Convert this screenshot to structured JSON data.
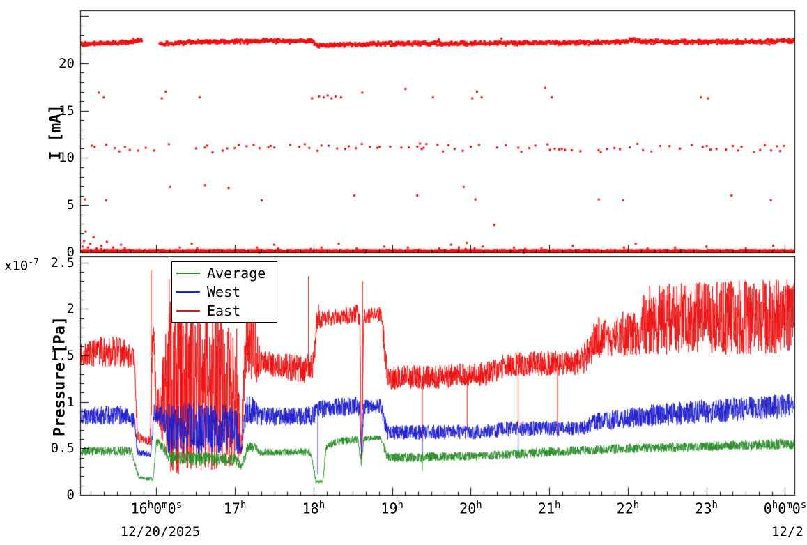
{
  "top_panel": {
    "ylabel": "I [mA]",
    "yticks": {
      "values": [
        0,
        5,
        10,
        15,
        20
      ],
      "labels": [
        "0",
        "5",
        "10",
        "15",
        "20"
      ]
    }
  },
  "bottom_panel": {
    "ylabel": "Pressure [Pa]",
    "exponent": "x10^{-7}",
    "yticks": {
      "values": [
        0,
        0.5,
        1,
        1.5,
        2,
        2.5
      ],
      "labels": [
        "0",
        "0.5",
        "1",
        "1.5",
        "2",
        "2.5"
      ]
    },
    "legend": {
      "entries": [
        {
          "label": "Average",
          "color": "#2a8f2a"
        },
        {
          "label": "West",
          "color": "#2020d0"
        },
        {
          "label": "East",
          "color": "#ee1111"
        }
      ]
    }
  },
  "xaxis": {
    "ticks": [
      {
        "t": 16,
        "label": "16^{h}0^{m}0^{s}"
      },
      {
        "t": 17,
        "label": "17^{h}"
      },
      {
        "t": 18,
        "label": "18^{h}"
      },
      {
        "t": 19,
        "label": "19^{h}"
      },
      {
        "t": 20,
        "label": "20^{h}"
      },
      {
        "t": 21,
        "label": "21^{h}"
      },
      {
        "t": 22,
        "label": "22^{h}"
      },
      {
        "t": 23,
        "label": "23^{h}"
      },
      {
        "t": 24,
        "label": "0^{h}0^{m}0^{s}"
      }
    ],
    "date_left": "12/20/2025",
    "date_right": "12/2"
  },
  "chart_data": [
    {
      "type": "scatter",
      "panel": "top",
      "ylabel": "I [mA]",
      "ylim": [
        0,
        25.6
      ],
      "x_unit": "hours",
      "xlim": [
        15.03,
        24.12
      ],
      "marker_color": "#ee1111",
      "bands": [
        {
          "name": "main-current-band",
          "kind": "dense-trace",
          "jitter": 0.18,
          "spacing_h": 0.0055,
          "gaps": [
            [
              15.82,
              16.04
            ]
          ],
          "mean_points": [
            [
              15.04,
              22.05
            ],
            [
              15.3,
              22.1
            ],
            [
              15.55,
              22.18
            ],
            [
              15.7,
              22.35
            ],
            [
              15.82,
              22.5
            ],
            [
              16.04,
              22.05
            ],
            [
              16.3,
              22.2
            ],
            [
              16.6,
              22.28
            ],
            [
              17.0,
              22.3
            ],
            [
              17.4,
              22.4
            ],
            [
              17.7,
              22.35
            ],
            [
              17.98,
              22.45
            ],
            [
              18.03,
              21.85
            ],
            [
              18.3,
              21.95
            ],
            [
              18.8,
              22.05
            ],
            [
              19.5,
              22.1
            ],
            [
              20.5,
              22.15
            ],
            [
              21.5,
              22.2
            ],
            [
              21.95,
              22.3
            ],
            [
              22.05,
              22.55
            ],
            [
              22.15,
              22.3
            ],
            [
              23.0,
              22.25
            ],
            [
              23.5,
              22.3
            ],
            [
              24.11,
              22.4
            ]
          ]
        },
        {
          "name": "eleven-mA-band",
          "kind": "random-scatter",
          "t_range": [
            15.05,
            24.08
          ],
          "y_center": 11.05,
          "y_jitter": 0.33,
          "keep_prob": 0.8
        },
        {
          "name": "zero-line",
          "kind": "dense-trace",
          "jitter": 0.07,
          "spacing_h": 0.004,
          "gaps": [],
          "mean_points": [
            [
              15.03,
              0.17
            ],
            [
              24.12,
              0.17
            ]
          ]
        }
      ],
      "points_16mA": [
        [
          15.27,
          16.9
        ],
        [
          15.33,
          16.4
        ],
        [
          16.07,
          16.3
        ],
        [
          16.12,
          17.0
        ],
        [
          16.55,
          16.4
        ],
        [
          17.98,
          16.3
        ],
        [
          18.07,
          16.5
        ],
        [
          18.13,
          16.4
        ],
        [
          18.18,
          16.6
        ],
        [
          18.23,
          16.3
        ],
        [
          18.28,
          16.5
        ],
        [
          18.35,
          16.4
        ],
        [
          18.62,
          16.9
        ],
        [
          19.17,
          17.3
        ],
        [
          19.52,
          16.4
        ],
        [
          20.02,
          16.3
        ],
        [
          20.08,
          17.0
        ],
        [
          20.14,
          16.4
        ],
        [
          20.95,
          17.4
        ],
        [
          21.03,
          16.4
        ],
        [
          22.93,
          16.4
        ],
        [
          23.02,
          16.3
        ]
      ],
      "points_6mA": [
        [
          15.09,
          5.6
        ],
        [
          15.36,
          5.5
        ],
        [
          16.17,
          6.9
        ],
        [
          16.62,
          7.1
        ],
        [
          16.92,
          6.8
        ],
        [
          17.34,
          5.5
        ],
        [
          18.52,
          6.0
        ],
        [
          19.32,
          6.0
        ],
        [
          19.91,
          6.9
        ],
        [
          20.06,
          5.6
        ],
        [
          21.63,
          5.6
        ],
        [
          21.94,
          5.5
        ],
        [
          23.32,
          6.0
        ],
        [
          23.82,
          5.5
        ]
      ],
      "points_low": [
        [
          15.06,
          0.6
        ],
        [
          15.08,
          1.2
        ],
        [
          15.1,
          2.2
        ],
        [
          15.13,
          0.5
        ],
        [
          15.16,
          0.9
        ],
        [
          15.2,
          1.6
        ],
        [
          15.24,
          0.4
        ],
        [
          15.3,
          0.7
        ],
        [
          15.37,
          1.1
        ],
        [
          15.45,
          0.5
        ],
        [
          15.55,
          0.8
        ],
        [
          15.6,
          0.4
        ],
        [
          16.3,
          0.5
        ],
        [
          16.45,
          0.9
        ],
        [
          16.52,
          0.4
        ],
        [
          17.28,
          0.5
        ],
        [
          17.5,
          0.8
        ],
        [
          17.55,
          0.4
        ],
        [
          18.1,
          0.5
        ],
        [
          18.32,
          0.9
        ],
        [
          18.55,
          0.4
        ],
        [
          18.9,
          0.6
        ],
        [
          19.2,
          0.5
        ],
        [
          19.6,
          0.4
        ],
        [
          19.75,
          0.8
        ],
        [
          19.85,
          0.5
        ],
        [
          19.95,
          1.0
        ],
        [
          20.05,
          0.4
        ],
        [
          20.15,
          0.6
        ],
        [
          20.3,
          2.9
        ],
        [
          20.55,
          0.5
        ],
        [
          20.9,
          0.4
        ],
        [
          21.3,
          0.7
        ],
        [
          21.95,
          0.5
        ],
        [
          22.1,
          0.9
        ],
        [
          22.25,
          0.4
        ],
        [
          22.6,
          0.5
        ],
        [
          23.0,
          0.6
        ],
        [
          23.5,
          0.4
        ],
        [
          23.85,
          0.7
        ]
      ]
    },
    {
      "type": "line",
      "panel": "bottom",
      "ylabel": "Pressure [Pa]",
      "y_scale_label": "x10^{-7}",
      "y_unit": "Pa (x1e-7)",
      "ylim": [
        0,
        2.565
      ],
      "xlim": [
        15.03,
        24.12
      ],
      "legend_position": "top-left",
      "series": [
        {
          "name": "East",
          "color": "#ee1111",
          "draw_order": 1,
          "envelope": [
            [
              15.04,
              1.5,
              0.13
            ],
            [
              15.4,
              1.55,
              0.18
            ],
            [
              15.6,
              1.52,
              0.15
            ],
            [
              15.72,
              1.45,
              0.12
            ],
            [
              15.76,
              0.62,
              0.06
            ],
            [
              15.92,
              0.58,
              0.05
            ],
            [
              15.96,
              1.8,
              0.5
            ],
            [
              16.0,
              0.95,
              0.2
            ],
            [
              16.08,
              1.0,
              0.45
            ],
            [
              16.14,
              1.15,
              0.95
            ],
            [
              17.02,
              1.15,
              0.85
            ],
            [
              17.08,
              0.52,
              0.1
            ],
            [
              17.14,
              1.7,
              0.4
            ],
            [
              17.26,
              1.6,
              0.45
            ],
            [
              17.32,
              1.42,
              0.14
            ],
            [
              17.6,
              1.38,
              0.14
            ],
            [
              17.9,
              1.35,
              0.15
            ],
            [
              18.0,
              1.4,
              0.15
            ],
            [
              18.04,
              1.88,
              0.1
            ],
            [
              18.2,
              1.9,
              0.09
            ],
            [
              18.56,
              1.95,
              0.1
            ],
            [
              18.59,
              1.9,
              0.1
            ],
            [
              18.61,
              0.42,
              0.08
            ],
            [
              18.64,
              1.92,
              0.08
            ],
            [
              18.86,
              1.95,
              0.08
            ],
            [
              18.9,
              1.6,
              0.15
            ],
            [
              18.94,
              1.26,
              0.13
            ],
            [
              19.6,
              1.27,
              0.13
            ],
            [
              20.2,
              1.3,
              0.13
            ],
            [
              20.45,
              1.4,
              0.13
            ],
            [
              21.4,
              1.43,
              0.14
            ],
            [
              21.52,
              1.55,
              0.2
            ],
            [
              21.6,
              1.72,
              0.25
            ],
            [
              22.1,
              1.73,
              0.25
            ],
            [
              22.25,
              1.88,
              0.38
            ],
            [
              23.0,
              1.9,
              0.4
            ],
            [
              24.11,
              1.92,
              0.4
            ]
          ],
          "spikes": [
            [
              15.93,
              2.42
            ],
            [
              16.16,
              2.32
            ],
            [
              16.3,
              2.2
            ],
            [
              17.18,
              2.12
            ],
            [
              17.93,
              2.35
            ],
            [
              18.06,
              2.05
            ],
            [
              18.62,
              2.3
            ],
            [
              19.38,
              0.58
            ],
            [
              19.95,
              0.72
            ],
            [
              20.6,
              0.68
            ],
            [
              21.1,
              0.62
            ]
          ]
        },
        {
          "name": "West",
          "color": "#2020d0",
          "draw_order": 2,
          "envelope": [
            [
              15.04,
              0.85,
              0.1
            ],
            [
              15.6,
              0.86,
              0.1
            ],
            [
              15.72,
              0.8,
              0.08
            ],
            [
              15.76,
              0.46,
              0.04
            ],
            [
              15.93,
              0.43,
              0.03
            ],
            [
              15.97,
              0.88,
              0.1
            ],
            [
              16.08,
              0.85,
              0.12
            ],
            [
              16.14,
              0.72,
              0.28
            ],
            [
              17.02,
              0.7,
              0.26
            ],
            [
              17.08,
              0.46,
              0.05
            ],
            [
              17.14,
              0.92,
              0.16
            ],
            [
              17.26,
              0.9,
              0.14
            ],
            [
              17.32,
              0.84,
              0.1
            ],
            [
              18.0,
              0.85,
              0.1
            ],
            [
              18.06,
              0.92,
              0.1
            ],
            [
              18.56,
              0.96,
              0.1
            ],
            [
              18.59,
              0.9,
              0.08
            ],
            [
              18.61,
              0.44,
              0.05
            ],
            [
              18.64,
              0.94,
              0.08
            ],
            [
              18.86,
              0.96,
              0.08
            ],
            [
              18.9,
              0.8,
              0.08
            ],
            [
              18.94,
              0.67,
              0.08
            ],
            [
              20.2,
              0.68,
              0.08
            ],
            [
              20.45,
              0.71,
              0.08
            ],
            [
              21.45,
              0.72,
              0.08
            ],
            [
              21.6,
              0.79,
              0.1
            ],
            [
              22.25,
              0.85,
              0.12
            ],
            [
              23.0,
              0.9,
              0.13
            ],
            [
              24.11,
              0.96,
              0.13
            ]
          ],
          "spikes": [
            [
              18.05,
              0.22
            ],
            [
              19.38,
              0.4
            ],
            [
              20.6,
              0.45
            ]
          ]
        },
        {
          "name": "Average",
          "color": "#2a8f2a",
          "draw_order": 3,
          "envelope": [
            [
              15.04,
              0.47,
              0.05
            ],
            [
              15.68,
              0.47,
              0.05
            ],
            [
              15.74,
              0.3,
              0.03
            ],
            [
              15.78,
              0.18,
              0.02
            ],
            [
              15.96,
              0.17,
              0.02
            ],
            [
              16.0,
              0.57,
              0.04
            ],
            [
              16.1,
              0.5,
              0.05
            ],
            [
              16.16,
              0.4,
              0.08
            ],
            [
              17.02,
              0.38,
              0.07
            ],
            [
              17.08,
              0.29,
              0.03
            ],
            [
              17.16,
              0.5,
              0.06
            ],
            [
              17.24,
              0.52,
              0.05
            ],
            [
              17.32,
              0.46,
              0.04
            ],
            [
              17.95,
              0.46,
              0.04
            ],
            [
              18.0,
              0.3,
              0.03
            ],
            [
              18.03,
              0.14,
              0.015
            ],
            [
              18.12,
              0.14,
              0.015
            ],
            [
              18.16,
              0.52,
              0.04
            ],
            [
              18.3,
              0.57,
              0.04
            ],
            [
              18.56,
              0.6,
              0.04
            ],
            [
              18.61,
              0.33,
              0.03
            ],
            [
              18.64,
              0.6,
              0.03
            ],
            [
              18.86,
              0.62,
              0.03
            ],
            [
              18.9,
              0.5,
              0.04
            ],
            [
              18.94,
              0.4,
              0.05
            ],
            [
              19.6,
              0.41,
              0.05
            ],
            [
              20.2,
              0.42,
              0.05
            ],
            [
              21.0,
              0.46,
              0.05
            ],
            [
              22.0,
              0.5,
              0.05
            ],
            [
              23.0,
              0.52,
              0.05
            ],
            [
              24.11,
              0.55,
              0.06
            ]
          ],
          "spikes": [
            [
              19.38,
              0.26
            ]
          ]
        }
      ]
    }
  ]
}
